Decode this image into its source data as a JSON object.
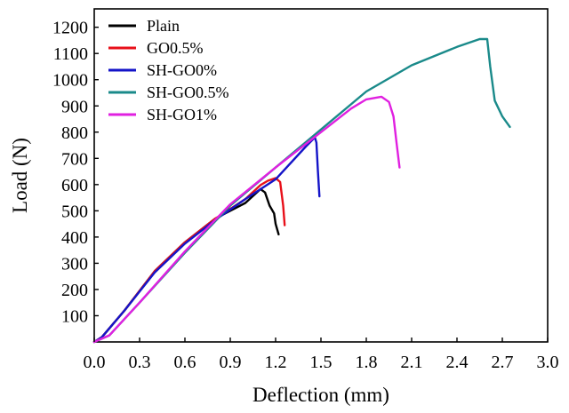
{
  "chart_data": {
    "type": "line",
    "xlabel": "Deflection (mm)",
    "ylabel": "Load (N)",
    "xlim": [
      0.0,
      3.0
    ],
    "ylim": [
      0,
      1270
    ],
    "xticks": [
      0.0,
      0.3,
      0.6,
      0.9,
      1.2,
      1.5,
      1.8,
      2.1,
      2.4,
      2.7,
      3.0
    ],
    "xtick_labels": [
      "0.0",
      "0.3",
      "0.6",
      "0.9",
      "1.2",
      "1.5",
      "1.8",
      "2.1",
      "2.4",
      "2.7",
      "3.0"
    ],
    "yticks": [
      100,
      200,
      300,
      400,
      500,
      600,
      700,
      800,
      900,
      1000,
      1100,
      1200
    ],
    "ytick_labels": [
      "100",
      "200",
      "300",
      "400",
      "500",
      "600",
      "700",
      "800",
      "900",
      "1000",
      "1100",
      "1200"
    ],
    "grid": false,
    "legend": "top-left",
    "series": [
      {
        "name": "Plain",
        "color": "#000000",
        "x": [
          0.0,
          0.05,
          0.2,
          0.4,
          0.6,
          0.8,
          1.0,
          1.1,
          1.13,
          1.16,
          1.19,
          1.2,
          1.22
        ],
        "y": [
          0,
          18,
          120,
          270,
          380,
          470,
          530,
          583,
          570,
          520,
          490,
          450,
          410
        ]
      },
      {
        "name": "GO0.5%",
        "color": "#e8101a",
        "x": [
          0.0,
          0.05,
          0.2,
          0.4,
          0.6,
          0.8,
          1.0,
          1.1,
          1.15,
          1.2,
          1.23,
          1.25,
          1.26
        ],
        "y": [
          0,
          18,
          120,
          270,
          380,
          470,
          545,
          598,
          615,
          625,
          610,
          520,
          445
        ]
      },
      {
        "name": "SH-GO0%",
        "color": "#1414c8",
        "x": [
          0.0,
          0.05,
          0.2,
          0.4,
          0.6,
          0.8,
          1.0,
          1.2,
          1.4,
          1.46,
          1.47,
          1.48,
          1.49
        ],
        "y": [
          0,
          18,
          120,
          265,
          375,
          465,
          545,
          620,
          745,
          780,
          760,
          650,
          555
        ]
      },
      {
        "name": "SH-GO0.5%",
        "color": "#1a8a8a",
        "x": [
          0.0,
          0.1,
          0.3,
          0.6,
          0.9,
          1.2,
          1.5,
          1.8,
          2.1,
          2.4,
          2.55,
          2.6,
          2.62,
          2.65,
          2.7,
          2.75
        ],
        "y": [
          0,
          25,
          150,
          340,
          520,
          665,
          810,
          955,
          1055,
          1125,
          1155,
          1155,
          1050,
          920,
          860,
          820
        ]
      },
      {
        "name": "SH-GO1%",
        "color": "#e020e0",
        "x": [
          0.0,
          0.1,
          0.3,
          0.6,
          0.9,
          1.2,
          1.5,
          1.7,
          1.8,
          1.9,
          1.95,
          1.98,
          2.0,
          2.02
        ],
        "y": [
          0,
          25,
          150,
          345,
          525,
          665,
          800,
          890,
          925,
          935,
          915,
          860,
          760,
          665
        ]
      }
    ]
  }
}
